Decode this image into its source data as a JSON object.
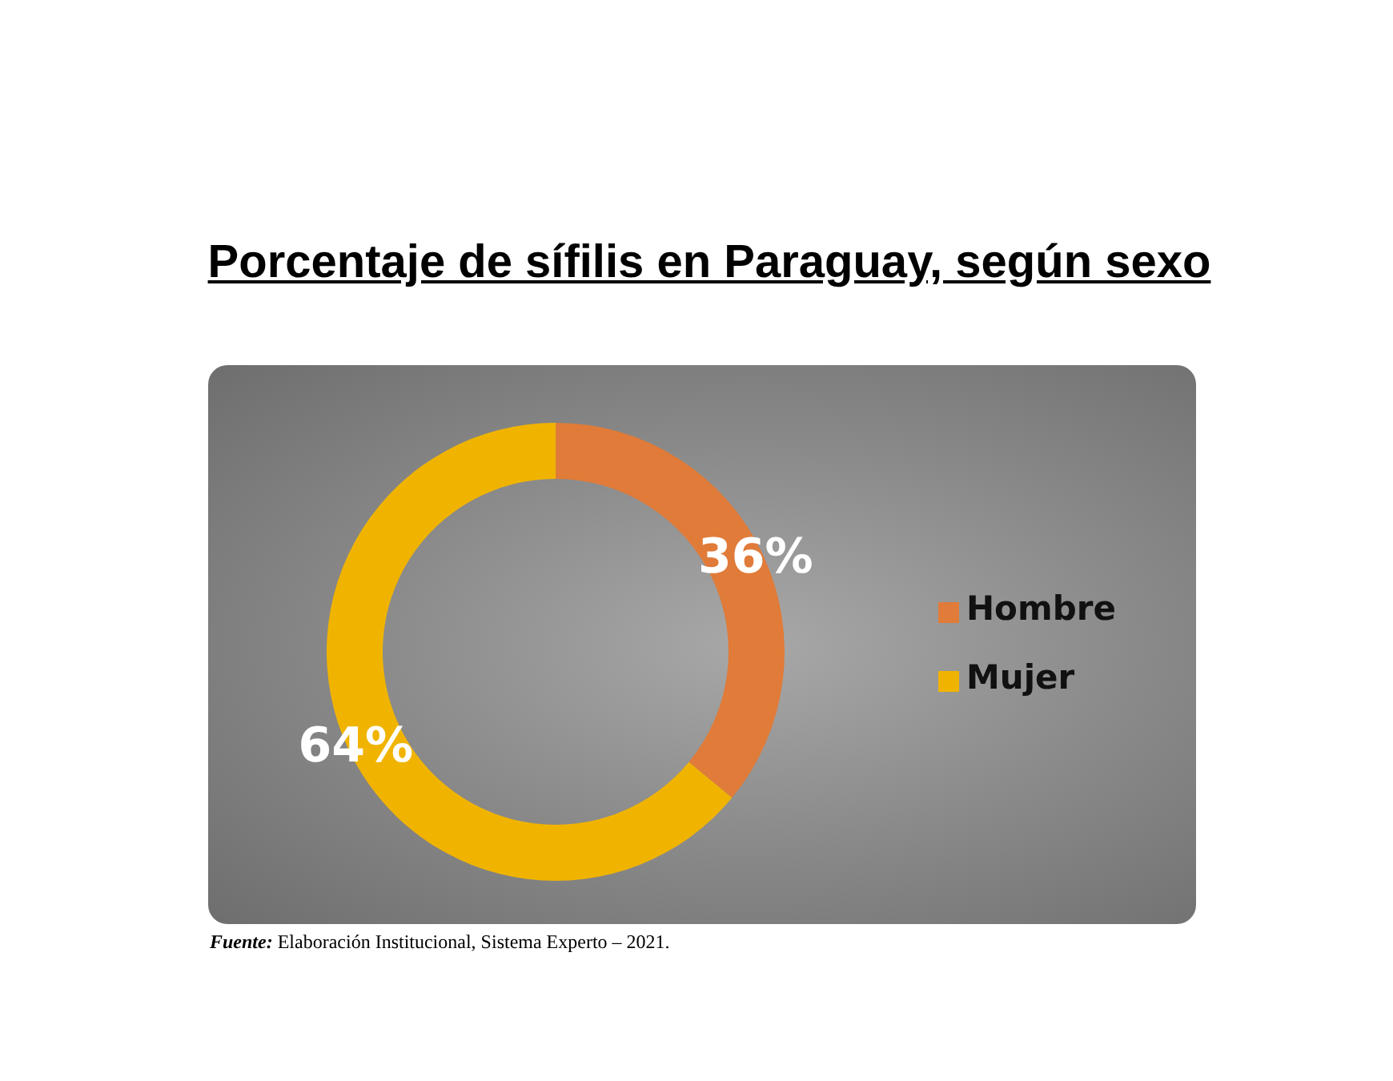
{
  "chart_data": {
    "type": "donut",
    "title": "Porcentaje de sífilis en Paraguay, según sexo",
    "categories": [
      "Hombre",
      "Mujer"
    ],
    "values": [
      36,
      64
    ],
    "colors": [
      "#e07b39",
      "#f0b400"
    ],
    "value_labels": [
      "36%",
      "64%"
    ],
    "legend": "right",
    "annotations": [
      "Fuente: Elaboración Institucional, Sistema Experto – 2021."
    ]
  }
}
